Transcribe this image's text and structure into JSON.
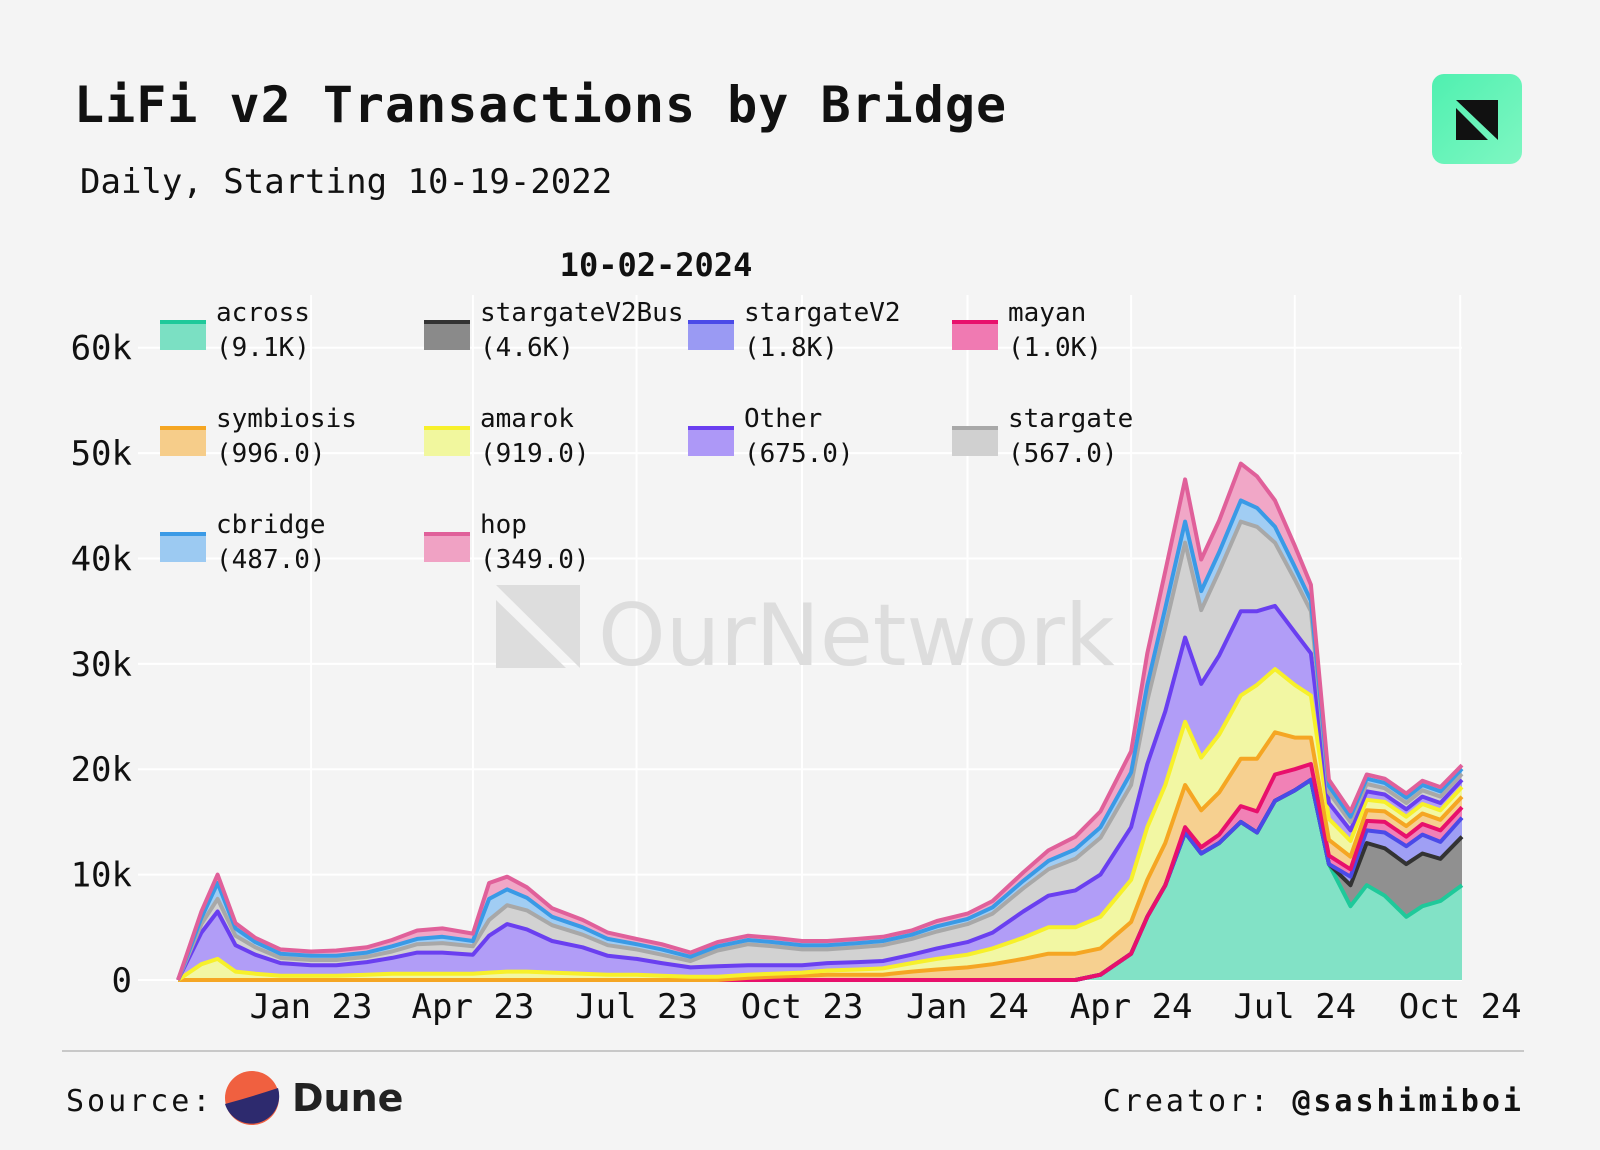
{
  "header": {
    "title": "LiFi v2 Transactions by Bridge",
    "subtitle": "Daily, Starting 10-19-2022"
  },
  "footer": {
    "source_label": "Source:",
    "source_name": "Dune",
    "creator_label": "Creator:",
    "creator_handle": "@sashimiboi"
  },
  "watermark": "OurNetwork",
  "colors": {
    "background": "#f4f4f4",
    "grid": "#ffffff",
    "logo_green": "#5ff3b8"
  },
  "chart_data": {
    "type": "area",
    "stacked": true,
    "legend_title": "10-02-2024",
    "legend_position": "top-left",
    "grid": true,
    "ylim": [
      0,
      65000
    ],
    "y_ticks": [
      0,
      10000,
      20000,
      30000,
      40000,
      50000,
      60000
    ],
    "y_tick_labels": [
      "0",
      "10k",
      "20k",
      "30k",
      "40k",
      "50k",
      "60k"
    ],
    "x_ticks": [
      "2023-01-01",
      "2023-04-01",
      "2023-07-01",
      "2023-10-01",
      "2024-01-01",
      "2024-04-01",
      "2024-07-01",
      "2024-10-01"
    ],
    "x_tick_labels": [
      "Jan 23",
      "Apr 23",
      "Jul 23",
      "Oct 23",
      "Jan 24",
      "Apr 24",
      "Jul 24",
      "Oct 24"
    ],
    "x_range": [
      "2022-10-19",
      "2024-10-02"
    ],
    "x": [
      "2022-10-19",
      "2022-11-01",
      "2022-11-10",
      "2022-11-20",
      "2022-12-01",
      "2022-12-15",
      "2023-01-01",
      "2023-01-15",
      "2023-02-01",
      "2023-02-15",
      "2023-03-01",
      "2023-03-15",
      "2023-04-01",
      "2023-04-10",
      "2023-04-20",
      "2023-05-01",
      "2023-05-15",
      "2023-06-01",
      "2023-06-15",
      "2023-07-01",
      "2023-07-15",
      "2023-07-31",
      "2023-08-15",
      "2023-09-01",
      "2023-09-15",
      "2023-10-01",
      "2023-10-15",
      "2023-11-01",
      "2023-11-15",
      "2023-12-01",
      "2023-12-15",
      "2024-01-01",
      "2024-01-15",
      "2024-02-01",
      "2024-02-15",
      "2024-03-01",
      "2024-03-15",
      "2024-04-01",
      "2024-04-10",
      "2024-04-20",
      "2024-05-01",
      "2024-05-10",
      "2024-05-20",
      "2024-06-01",
      "2024-06-10",
      "2024-06-20",
      "2024-07-01",
      "2024-07-10",
      "2024-07-20",
      "2024-08-01",
      "2024-08-10",
      "2024-08-20",
      "2024-09-01",
      "2024-09-10",
      "2024-09-20",
      "2024-10-02"
    ],
    "series": [
      {
        "name": "across",
        "legend_value": "(9.1K)",
        "color": "#1fc99a",
        "fill": "#7be0c3",
        "values": [
          0,
          0,
          0,
          0,
          0,
          0,
          0,
          0,
          0,
          0,
          0,
          0,
          0,
          0,
          0,
          0,
          0,
          0,
          0,
          0,
          0,
          0,
          0,
          0,
          0,
          0,
          0,
          0,
          0,
          0,
          0,
          0,
          0,
          0,
          0,
          0,
          500,
          2500,
          6000,
          9000,
          14000,
          12000,
          13000,
          15000,
          14000,
          17000,
          18000,
          19000,
          11000,
          7000,
          9000,
          8000,
          6000,
          7000,
          7500,
          9000
        ]
      },
      {
        "name": "stargateV2Bus",
        "legend_value": "(4.6K)",
        "color": "#333333",
        "fill": "#8a8a8a",
        "values": [
          0,
          0,
          0,
          0,
          0,
          0,
          0,
          0,
          0,
          0,
          0,
          0,
          0,
          0,
          0,
          0,
          0,
          0,
          0,
          0,
          0,
          0,
          0,
          0,
          0,
          0,
          0,
          0,
          0,
          0,
          0,
          0,
          0,
          0,
          0,
          0,
          0,
          0,
          0,
          0,
          0,
          0,
          0,
          0,
          0,
          0,
          0,
          0,
          0,
          2000,
          4000,
          4500,
          5000,
          5000,
          4000,
          4600
        ]
      },
      {
        "name": "stargateV2",
        "legend_value": "(1.8K)",
        "color": "#4a4ae8",
        "fill": "#9a9af3",
        "values": [
          0,
          0,
          0,
          0,
          0,
          0,
          0,
          0,
          0,
          0,
          0,
          0,
          0,
          0,
          0,
          0,
          0,
          0,
          0,
          0,
          0,
          0,
          0,
          0,
          0,
          0,
          0,
          0,
          0,
          0,
          0,
          0,
          0,
          0,
          0,
          0,
          0,
          0,
          0,
          0,
          0,
          0,
          0,
          0,
          0,
          0,
          0,
          0,
          0,
          800,
          1200,
          1500,
          1700,
          1800,
          1600,
          1800
        ]
      },
      {
        "name": "mayan",
        "legend_value": "(1.0K)",
        "color": "#e8106c",
        "fill": "#f07ab2",
        "values": [
          0,
          0,
          0,
          0,
          0,
          0,
          0,
          0,
          0,
          0,
          0,
          0,
          0,
          0,
          0,
          0,
          0,
          0,
          0,
          0,
          0,
          0,
          0,
          0,
          0,
          0,
          0,
          0,
          0,
          0,
          0,
          0,
          0,
          0,
          0,
          0,
          0,
          0,
          0,
          0,
          500,
          600,
          800,
          1500,
          2000,
          2500,
          2000,
          1500,
          800,
          700,
          900,
          1000,
          900,
          1000,
          1100,
          1000
        ]
      },
      {
        "name": "symbiosis",
        "legend_value": "(996.0)",
        "color": "#f5a623",
        "fill": "#f6cd8a",
        "values": [
          0,
          0,
          0,
          0,
          0,
          0,
          0,
          0,
          0,
          0,
          0,
          0,
          0,
          0,
          0,
          0,
          0,
          0,
          0,
          0,
          0,
          0,
          0,
          200,
          300,
          400,
          500,
          500,
          500,
          800,
          1000,
          1200,
          1500,
          2000,
          2500,
          2500,
          2500,
          3000,
          3500,
          4000,
          4000,
          3500,
          4000,
          4500,
          5000,
          4000,
          3000,
          2500,
          1500,
          1200,
          1000,
          1000,
          1000,
          1000,
          1000,
          996
        ]
      },
      {
        "name": "amarok",
        "legend_value": "(919.0)",
        "color": "#f7f02a",
        "fill": "#f1f79e",
        "values": [
          0,
          1500,
          2000,
          800,
          600,
          400,
          400,
          400,
          500,
          600,
          600,
          600,
          600,
          700,
          800,
          800,
          700,
          600,
          500,
          500,
          400,
          300,
          300,
          300,
          300,
          300,
          400,
          500,
          600,
          800,
          1000,
          1200,
          1500,
          2000,
          2500,
          2500,
          3000,
          4000,
          5000,
          5500,
          6000,
          5000,
          5500,
          6000,
          7000,
          6000,
          5000,
          4000,
          2000,
          1500,
          1000,
          900,
          900,
          900,
          900,
          919
        ]
      },
      {
        "name": "Other",
        "legend_value": "(675.0)",
        "color": "#6a3ff0",
        "fill": "#ad98f7",
        "values": [
          0,
          3000,
          4500,
          2500,
          1800,
          1200,
          1000,
          1000,
          1200,
          1500,
          2000,
          2000,
          1800,
          3500,
          4500,
          4000,
          3000,
          2500,
          1800,
          1500,
          1200,
          900,
          1000,
          900,
          800,
          700,
          700,
          700,
          700,
          800,
          1000,
          1200,
          1500,
          2500,
          3000,
          3500,
          4000,
          5000,
          6000,
          7000,
          8000,
          7000,
          7500,
          8000,
          7000,
          6000,
          5000,
          4000,
          1500,
          1000,
          800,
          700,
          700,
          700,
          700,
          675
        ]
      },
      {
        "name": "stargate",
        "legend_value": "(567.0)",
        "color": "#a8a8a8",
        "fill": "#d0d0d0",
        "values": [
          0,
          800,
          1200,
          900,
          700,
          500,
          500,
          500,
          500,
          600,
          800,
          900,
          800,
          1500,
          1800,
          1800,
          1500,
          1200,
          1000,
          900,
          800,
          600,
          1500,
          2000,
          1800,
          1500,
          1300,
          1400,
          1500,
          1500,
          1600,
          1700,
          1800,
          2200,
          2500,
          3000,
          3500,
          4000,
          6000,
          8000,
          9000,
          7000,
          8000,
          8500,
          8000,
          6000,
          5000,
          4000,
          1000,
          800,
          700,
          600,
          600,
          600,
          600,
          567
        ]
      },
      {
        "name": "cbridge",
        "legend_value": "(487.0)",
        "color": "#3a9ae6",
        "fill": "#9ccaf2",
        "values": [
          0,
          600,
          1500,
          700,
          500,
          400,
          400,
          400,
          400,
          500,
          500,
          600,
          500,
          2000,
          1500,
          1200,
          800,
          700,
          600,
          500,
          500,
          400,
          400,
          400,
          400,
          400,
          400,
          400,
          400,
          400,
          500,
          500,
          600,
          700,
          800,
          900,
          1000,
          1200,
          1500,
          1800,
          2000,
          1800,
          1800,
          2000,
          1800,
          1500,
          1200,
          1000,
          600,
          500,
          500,
          500,
          500,
          500,
          500,
          487
        ]
      },
      {
        "name": "hop",
        "legend_value": "(349.0)",
        "color": "#e0609a",
        "fill": "#f0a2c4",
        "values": [
          0,
          600,
          800,
          500,
          400,
          400,
          400,
          500,
          500,
          600,
          800,
          800,
          700,
          1500,
          1200,
          1000,
          800,
          700,
          600,
          500,
          500,
          400,
          400,
          400,
          400,
          400,
          400,
          400,
          400,
          400,
          500,
          500,
          600,
          800,
          1000,
          1200,
          1500,
          2000,
          3000,
          3500,
          4000,
          3000,
          3000,
          3500,
          3000,
          2500,
          2000,
          1500,
          600,
          500,
          400,
          400,
          400,
          400,
          400,
          349
        ]
      }
    ]
  }
}
